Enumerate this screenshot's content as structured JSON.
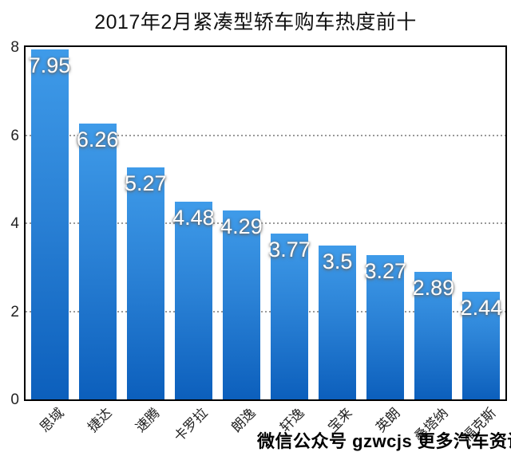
{
  "title": "2017年2月紧凑型轿车购车热度前十",
  "watermark": "微信公众号 gzwcjs 更多汽车资讯",
  "colors": {
    "bar_gradient_top": "#3F9BE9",
    "bar_gradient_bottom": "#0C5FBC",
    "frame": "#000000",
    "gridline": "#999999",
    "value_label": "#FFFFFF",
    "title_text": "#111111",
    "tick_text": "#222222",
    "watermark_text": "#000000",
    "background": "#FFFFFF"
  },
  "chart_data": {
    "type": "bar",
    "title": "2017年2月紧凑型轿车购车热度前十",
    "categories": [
      "思域",
      "捷达",
      "速腾",
      "卡罗拉",
      "朗逸",
      "轩逸",
      "宝来",
      "英朗",
      "桑塔纳",
      "福克斯"
    ],
    "values": [
      7.95,
      6.26,
      5.27,
      4.48,
      4.29,
      3.77,
      3.5,
      3.27,
      2.89,
      2.44
    ],
    "value_labels": [
      "7.95",
      "6.26",
      "5.27",
      "4.48",
      "4.29",
      "3.77",
      "3.5",
      "3.27",
      "2.89",
      "2.44"
    ],
    "xlabel": "",
    "ylabel": "",
    "ylim": [
      0,
      8
    ],
    "yticks": [
      0,
      2,
      4,
      6,
      8
    ],
    "gridlines_at": [
      2,
      4,
      6
    ],
    "grid_style": "horizontal dashed",
    "legend": "none",
    "x_tick_rotation_deg": 45,
    "annotation": "微信公众号 gzwcjs 更多汽车资讯"
  }
}
